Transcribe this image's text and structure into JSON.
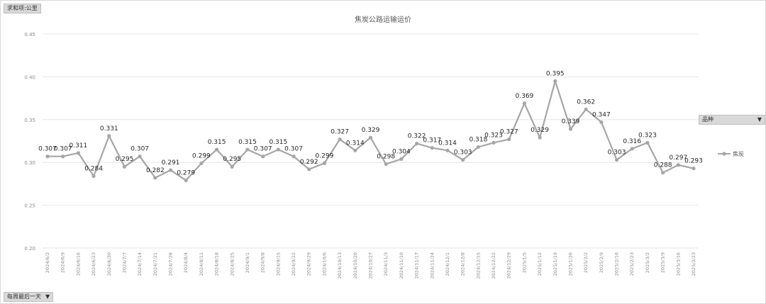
{
  "chart_data": {
    "type": "line",
    "title": "焦炭公路运输运价",
    "xlabel": "",
    "ylabel": "",
    "ylim": [
      0.2,
      0.45
    ],
    "yticks": [
      "0.20",
      "0.25",
      "0.30",
      "0.35",
      "0.40",
      "0.45"
    ],
    "grid": true,
    "legend_position": "right",
    "line_color": "#a6a6a6",
    "x": [
      "2024/6/2",
      "2024/6/9",
      "2024/6/16",
      "2024/6/23",
      "2024/6/30",
      "2024/7/7",
      "2024/7/14",
      "2024/7/21",
      "2024/7/28",
      "2024/8/4",
      "2024/8/11",
      "2024/8/18",
      "2024/8/25",
      "2024/9/1",
      "2024/9/8",
      "2024/9/15",
      "2024/9/22",
      "2024/9/29",
      "2024/10/6",
      "2024/10/13",
      "2024/10/20",
      "2024/10/27",
      "2024/11/3",
      "2024/11/10",
      "2024/11/17",
      "2024/11/24",
      "2024/12/1",
      "2024/12/8",
      "2024/12/15",
      "2024/12/22",
      "2024/12/29",
      "2025/1/5",
      "2025/1/12",
      "2025/1/19",
      "2025/1/26",
      "2025/2/2",
      "2025/2/9",
      "2025/2/16",
      "2025/2/23",
      "2025/3/2",
      "2025/3/9",
      "2025/3/16",
      "2025/3/23"
    ],
    "series": [
      {
        "name": "焦炭",
        "values": [
          0.307,
          0.307,
          0.311,
          0.284,
          0.331,
          0.295,
          0.307,
          0.282,
          0.291,
          0.279,
          0.299,
          0.315,
          0.295,
          0.315,
          0.307,
          0.315,
          0.307,
          0.292,
          0.299,
          0.327,
          0.314,
          0.329,
          0.298,
          0.304,
          0.322,
          0.317,
          0.314,
          0.303,
          0.318,
          0.323,
          0.327,
          0.369,
          0.329,
          0.395,
          0.339,
          0.362,
          0.347,
          0.303,
          0.316,
          0.323,
          0.288,
          0.297,
          0.293
        ]
      }
    ]
  },
  "controls": {
    "top_button": "求和项:公里",
    "bottom_button": "每周最后一天",
    "legend_button": "品种"
  }
}
